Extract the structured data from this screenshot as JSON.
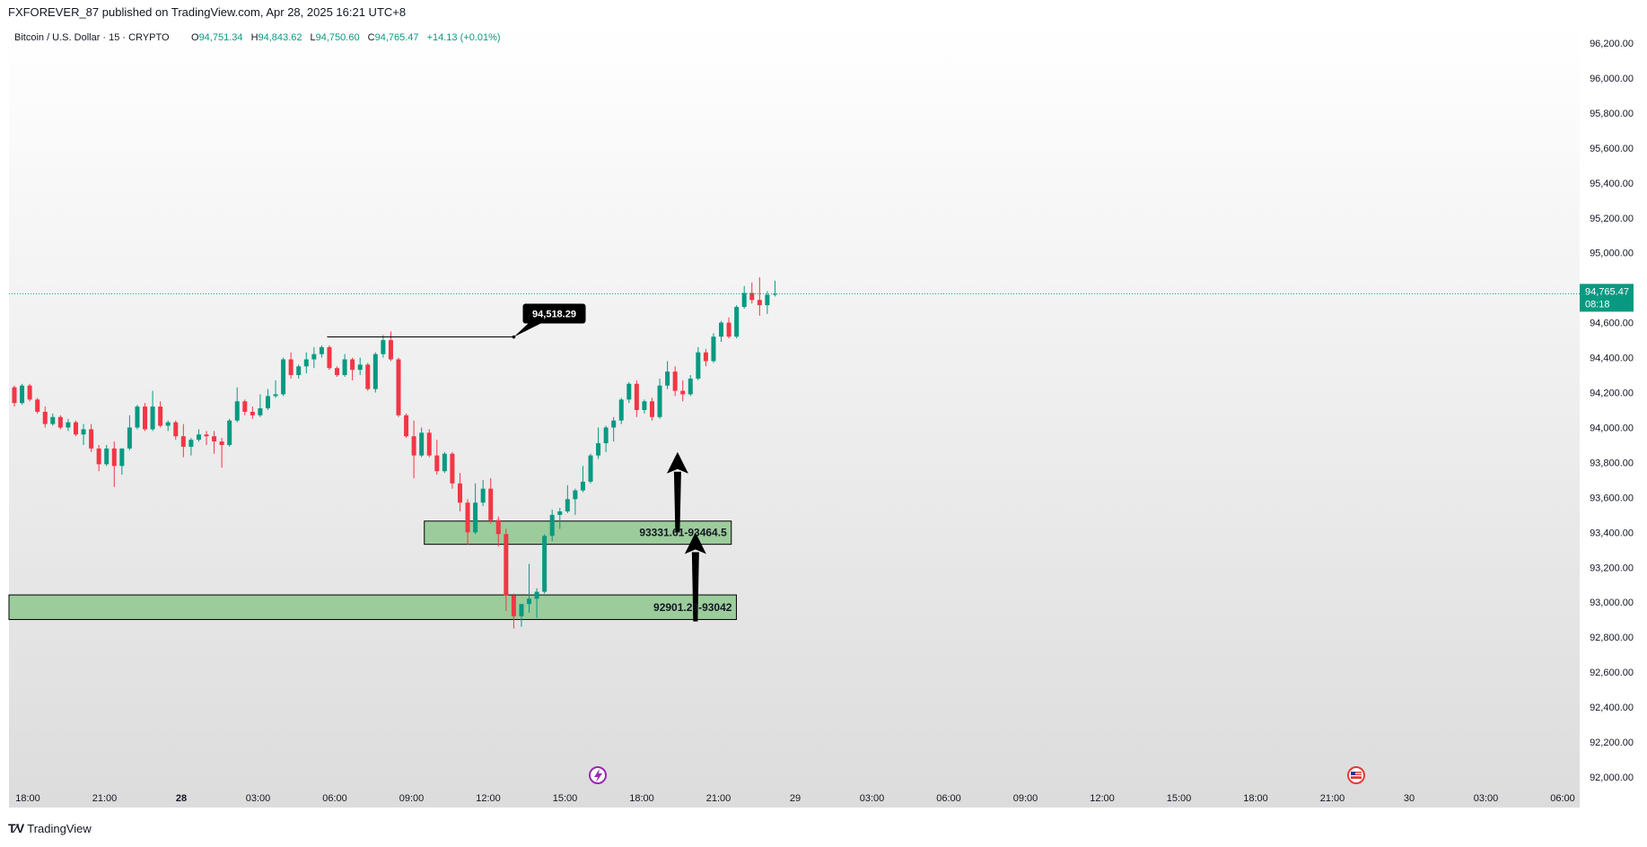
{
  "header": {
    "published": "FXFOREVER_87 published on TradingView.com, Apr 28, 2025 16:21 UTC+8"
  },
  "legend": {
    "symbol": "Bitcoin / U.S. Dollar · 15 · CRYPTO",
    "o_label": "O",
    "o_value": "94,751.34",
    "h_label": "H",
    "h_value": "94,843.62",
    "l_label": "L",
    "l_value": "94,750.60",
    "c_label": "C",
    "c_value": "94,765.47",
    "change": "+14.13 (+0.01%)"
  },
  "price_tag": {
    "price": "94,765.47",
    "countdown": "08:18"
  },
  "annotations": {
    "level_label": "94,518.29",
    "zone_upper_label": "93331.61-93464.5",
    "zone_lower_label": "92901.29-93042"
  },
  "footer": {
    "brand": "TradingView"
  },
  "colors": {
    "up": "#089981",
    "down": "#f23645",
    "zone_fill": "#9ccc9c",
    "price_tag": "#089981",
    "legend_value": "#089981",
    "text": "#131722"
  },
  "chart_data": {
    "type": "candlestick",
    "instrument": "Bitcoin / U.S. Dollar",
    "interval": "15",
    "ylim": [
      91900,
      96300
    ],
    "y_ticks": [
      "96,200.00",
      "96,000.00",
      "95,800.00",
      "95,600.00",
      "95,400.00",
      "95,200.00",
      "95,000.00",
      "94,800.00",
      "94,600.00",
      "94,400.00",
      "94,200.00",
      "94,000.00",
      "93,800.00",
      "93,600.00",
      "93,400.00",
      "93,200.00",
      "93,000.00",
      "92,800.00",
      "92,600.00",
      "92,400.00",
      "92,200.00",
      "92,000.00"
    ],
    "y_tick_values": [
      96200,
      96000,
      95800,
      95600,
      95400,
      95200,
      95000,
      94800,
      94600,
      94400,
      94200,
      94000,
      93800,
      93600,
      93400,
      93200,
      93000,
      92800,
      92600,
      92400,
      92200,
      92000
    ],
    "x_ticks": [
      "18:00",
      "21:00",
      "28",
      "03:00",
      "06:00",
      "09:00",
      "12:00",
      "15:00",
      "18:00",
      "21:00",
      "29",
      "03:00",
      "06:00",
      "09:00",
      "12:00",
      "15:00",
      "18:00",
      "21:00",
      "30",
      "03:00",
      "06:00"
    ],
    "x_tick_hours": [
      0,
      3,
      6,
      9,
      12,
      15,
      18,
      21,
      24,
      27,
      30,
      33,
      36,
      39,
      42,
      45,
      48,
      51,
      54,
      57,
      60
    ],
    "x_tick_bold": [
      false,
      false,
      true,
      false,
      false,
      false,
      false,
      false,
      false,
      false,
      false,
      false,
      false,
      false,
      false,
      false,
      false,
      false,
      false,
      false,
      false
    ],
    "current_price": 94765.47,
    "level": {
      "price": 94518.29,
      "from_hour": 11.7,
      "to_hour": 19.0
    },
    "zones": [
      {
        "low": 93331.61,
        "high": 93464.5,
        "from_hour": 15.5,
        "to_hour": 27.5
      },
      {
        "low": 92901.29,
        "high": 93042,
        "from_hour": -1.2,
        "to_hour": 27.7
      }
    ],
    "arrows": [
      {
        "hour": 25.4,
        "from": 93400,
        "to": 93860
      },
      {
        "hour": 26.1,
        "from": 92890,
        "to": 93400
      }
    ],
    "candles": [
      [
        94230,
        94240,
        94120,
        94140
      ],
      [
        94140,
        94250,
        94130,
        94240
      ],
      [
        94240,
        94250,
        94150,
        94160
      ],
      [
        94160,
        94170,
        94080,
        94090
      ],
      [
        94090,
        94120,
        94000,
        94020
      ],
      [
        94020,
        94080,
        94010,
        94060
      ],
      [
        94060,
        94070,
        93990,
        94000
      ],
      [
        94000,
        94050,
        93980,
        94030
      ],
      [
        94030,
        94040,
        93950,
        93960
      ],
      [
        93960,
        94020,
        93900,
        93990
      ],
      [
        93990,
        94020,
        93860,
        93880
      ],
      [
        93880,
        93900,
        93750,
        93790
      ],
      [
        93790,
        93900,
        93780,
        93880
      ],
      [
        93880,
        93920,
        93660,
        93780
      ],
      [
        93780,
        93880,
        93730,
        93880
      ],
      [
        93880,
        94070,
        93870,
        94000
      ],
      [
        94000,
        94130,
        93990,
        94120
      ],
      [
        94120,
        94140,
        93980,
        93990
      ],
      [
        93990,
        94210,
        93980,
        94120
      ],
      [
        94120,
        94150,
        94000,
        94010
      ],
      [
        94010,
        94040,
        93980,
        94030
      ],
      [
        94030,
        94040,
        93930,
        93950
      ],
      [
        93950,
        94020,
        93830,
        93890
      ],
      [
        93890,
        93940,
        93840,
        93930
      ],
      [
        93930,
        93990,
        93920,
        93960
      ],
      [
        93960,
        93980,
        93900,
        93950
      ],
      [
        93950,
        93980,
        93850,
        93920
      ],
      [
        93920,
        93940,
        93770,
        93900
      ],
      [
        93900,
        94050,
        93890,
        94040
      ],
      [
        94040,
        94230,
        94030,
        94150
      ],
      [
        94150,
        94160,
        94070,
        94090
      ],
      [
        94090,
        94120,
        94050,
        94070
      ],
      [
        94070,
        94190,
        94060,
        94110
      ],
      [
        94110,
        94220,
        94100,
        94180
      ],
      [
        94180,
        94270,
        94170,
        94190
      ],
      [
        94190,
        94400,
        94180,
        94390
      ],
      [
        94390,
        94430,
        94280,
        94300
      ],
      [
        94300,
        94360,
        94280,
        94350
      ],
      [
        94350,
        94430,
        94310,
        94390
      ],
      [
        94390,
        94460,
        94340,
        94420
      ],
      [
        94420,
        94470,
        94400,
        94460
      ],
      [
        94460,
        94470,
        94330,
        94340
      ],
      [
        94340,
        94350,
        94290,
        94300
      ],
      [
        94300,
        94420,
        94290,
        94390
      ],
      [
        94390,
        94400,
        94270,
        94330
      ],
      [
        94330,
        94400,
        94300,
        94360
      ],
      [
        94360,
        94370,
        94210,
        94220
      ],
      [
        94220,
        94430,
        94200,
        94420
      ],
      [
        94420,
        94530,
        94400,
        94500
      ],
      [
        94500,
        94550,
        94380,
        94390
      ],
      [
        94390,
        94400,
        94060,
        94070
      ],
      [
        94070,
        94080,
        93940,
        93950
      ],
      [
        93950,
        94040,
        93710,
        93840
      ],
      [
        93840,
        94000,
        93830,
        93970
      ],
      [
        93970,
        93990,
        93830,
        93840
      ],
      [
        93840,
        93930,
        93730,
        93750
      ],
      [
        93750,
        93860,
        93740,
        93850
      ],
      [
        93850,
        93860,
        93650,
        93680
      ],
      [
        93680,
        93740,
        93520,
        93570
      ],
      [
        93570,
        93590,
        93330,
        93400
      ],
      [
        93400,
        93680,
        93390,
        93570
      ],
      [
        93570,
        93700,
        93550,
        93650
      ],
      [
        93650,
        93710,
        93450,
        93470
      ],
      [
        93470,
        93490,
        93320,
        93390
      ],
      [
        93390,
        93420,
        92950,
        93040
      ],
      [
        93040,
        93050,
        92850,
        92920
      ],
      [
        92920,
        92990,
        92860,
        92990
      ],
      [
        92990,
        93220,
        92940,
        93020
      ],
      [
        93020,
        93080,
        92910,
        93060
      ],
      [
        93060,
        93390,
        93050,
        93380
      ],
      [
        93380,
        93530,
        93350,
        93500
      ],
      [
        93500,
        93540,
        93420,
        93520
      ],
      [
        93520,
        93670,
        93510,
        93590
      ],
      [
        93590,
        93650,
        93500,
        93640
      ],
      [
        93640,
        93780,
        93630,
        93690
      ],
      [
        93690,
        93850,
        93680,
        93840
      ],
      [
        93840,
        94000,
        93820,
        93910
      ],
      [
        93910,
        94010,
        93860,
        94000
      ],
      [
        94000,
        94060,
        93920,
        94040
      ],
      [
        94040,
        94170,
        94020,
        94160
      ],
      [
        94160,
        94260,
        94140,
        94250
      ],
      [
        94250,
        94270,
        94060,
        94100
      ],
      [
        94100,
        94160,
        94080,
        94150
      ],
      [
        94150,
        94170,
        94040,
        94060
      ],
      [
        94060,
        94280,
        94050,
        94240
      ],
      [
        94240,
        94380,
        94220,
        94320
      ],
      [
        94320,
        94350,
        94180,
        94210
      ],
      [
        94210,
        94270,
        94150,
        94190
      ],
      [
        94190,
        94300,
        94180,
        94280
      ],
      [
        94280,
        94460,
        94270,
        94430
      ],
      [
        94430,
        94450,
        94350,
        94380
      ],
      [
        94380,
        94540,
        94370,
        94520
      ],
      [
        94520,
        94610,
        94490,
        94600
      ],
      [
        94600,
        94630,
        94510,
        94520
      ],
      [
        94520,
        94700,
        94510,
        94690
      ],
      [
        94690,
        94810,
        94680,
        94770
      ],
      [
        94770,
        94830,
        94710,
        94730
      ],
      [
        94730,
        94860,
        94640,
        94700
      ],
      [
        94700,
        94780,
        94650,
        94760
      ],
      [
        94760,
        94840,
        94750,
        94765
      ]
    ]
  }
}
